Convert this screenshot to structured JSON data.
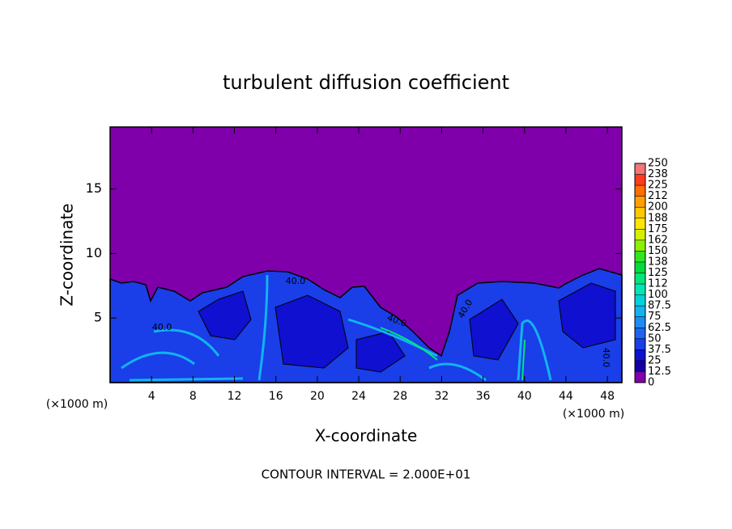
{
  "chart_data": {
    "type": "contour",
    "title": "turbulent diffusion coefficient",
    "xlabel": "X-coordinate",
    "ylabel": "Z-coordinate",
    "x_unit": "(×1000 m)",
    "footnote": "CONTOUR INTERVAL = 2.000E+01",
    "xlim": [
      0,
      49.4
    ],
    "xticks": [
      4,
      8,
      12,
      16,
      20,
      24,
      28,
      32,
      36,
      40,
      44,
      48
    ],
    "ylim": [
      0,
      19.8
    ],
    "yticks": [
      5,
      10,
      15
    ],
    "contour_labels": [
      "40.0",
      "40.0",
      "40.0",
      "40.0",
      "40.0"
    ],
    "colorbar": {
      "ticks": [
        0,
        12.5,
        25,
        37.5,
        50,
        62.5,
        75,
        87.5,
        100,
        {
          "value": 112.5,
          "label": "112"
        },
        125,
        {
          "value": 137.5,
          "label": "138"
        },
        150,
        {
          "value": 162.5,
          "label": "162"
        },
        175,
        {
          "value": 187.5,
          "label": "188"
        },
        200,
        {
          "value": 212.5,
          "label": "212"
        },
        225,
        {
          "value": 237.5,
          "label": "238"
        },
        250
      ],
      "colors": [
        "#7f00aa",
        "#1400a0",
        "#1010d0",
        "#1a3ee8",
        "#1e64f0",
        "#1e8cf5",
        "#10b4f0",
        "#00d2dc",
        "#00e6b4",
        "#00e678",
        "#00dc3c",
        "#32e61e",
        "#8cf000",
        "#d2f000",
        "#ffe600",
        "#ffc800",
        "#ffa000",
        "#ff6e00",
        "#ff3c1e",
        "#f07878"
      ]
    }
  }
}
